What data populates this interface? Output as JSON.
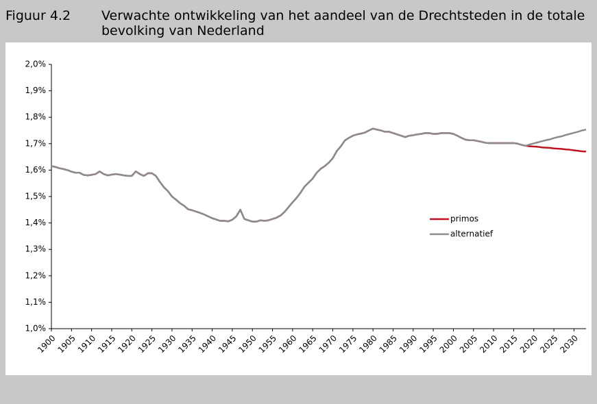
{
  "header": {
    "label": "Figuur 4.2",
    "title": "Verwachte ontwikkeling van het aandeel van de Drechtsteden in de totale bevolking van Nederland"
  },
  "chart_data": {
    "type": "line",
    "x": [
      1900,
      1901,
      1902,
      1903,
      1904,
      1905,
      1906,
      1907,
      1908,
      1909,
      1910,
      1911,
      1912,
      1913,
      1914,
      1915,
      1916,
      1917,
      1918,
      1919,
      1920,
      1921,
      1922,
      1923,
      1924,
      1925,
      1926,
      1927,
      1928,
      1929,
      1930,
      1931,
      1932,
      1933,
      1934,
      1935,
      1936,
      1937,
      1938,
      1939,
      1940,
      1941,
      1942,
      1943,
      1944,
      1945,
      1946,
      1947,
      1948,
      1949,
      1950,
      1951,
      1952,
      1953,
      1954,
      1955,
      1956,
      1957,
      1958,
      1959,
      1960,
      1961,
      1962,
      1963,
      1964,
      1965,
      1966,
      1967,
      1968,
      1969,
      1970,
      1971,
      1972,
      1973,
      1974,
      1975,
      1976,
      1977,
      1978,
      1979,
      1980,
      1981,
      1982,
      1983,
      1984,
      1985,
      1986,
      1987,
      1988,
      1989,
      1990,
      1991,
      1992,
      1993,
      1994,
      1995,
      1996,
      1997,
      1998,
      1999,
      2000,
      2001,
      2002,
      2003,
      2004,
      2005,
      2006,
      2007,
      2008,
      2009,
      2010,
      2011,
      2012,
      2013,
      2014,
      2015,
      2016,
      2017,
      2018,
      2019,
      2020,
      2021,
      2022,
      2023,
      2024,
      2025,
      2026,
      2027,
      2028,
      2029,
      2030,
      2031,
      2032,
      2033
    ],
    "series": [
      {
        "name": "primos",
        "color": "#c0121e",
        "values": [
          1.615,
          1.612,
          1.607,
          1.604,
          1.6,
          1.594,
          1.59,
          1.59,
          1.582,
          1.58,
          1.582,
          1.585,
          1.595,
          1.585,
          1.58,
          1.583,
          1.585,
          1.583,
          1.58,
          1.578,
          1.578,
          1.595,
          1.585,
          1.578,
          1.588,
          1.588,
          1.578,
          1.555,
          1.535,
          1.52,
          1.5,
          1.488,
          1.475,
          1.465,
          1.452,
          1.448,
          1.443,
          1.438,
          1.432,
          1.425,
          1.418,
          1.413,
          1.408,
          1.408,
          1.406,
          1.412,
          1.425,
          1.45,
          1.415,
          1.41,
          1.405,
          1.405,
          1.41,
          1.408,
          1.41,
          1.415,
          1.42,
          1.428,
          1.442,
          1.46,
          1.478,
          1.495,
          1.515,
          1.538,
          1.553,
          1.568,
          1.59,
          1.605,
          1.615,
          1.628,
          1.645,
          1.672,
          1.69,
          1.712,
          1.722,
          1.73,
          1.735,
          1.738,
          1.742,
          1.75,
          1.757,
          1.753,
          1.75,
          1.745,
          1.745,
          1.74,
          1.735,
          1.73,
          1.725,
          1.73,
          1.732,
          1.735,
          1.737,
          1.74,
          1.74,
          1.737,
          1.737,
          1.74,
          1.74,
          1.74,
          1.737,
          1.73,
          1.722,
          1.715,
          1.713,
          1.713,
          1.71,
          1.707,
          1.703,
          1.702,
          1.702,
          1.702,
          1.702,
          1.702,
          1.702,
          1.702,
          1.7,
          1.695,
          1.692,
          1.69,
          1.689,
          1.688,
          1.686,
          1.685,
          1.684,
          1.682,
          1.681,
          1.68,
          1.678,
          1.677,
          1.675,
          1.673,
          1.671,
          1.67
        ]
      },
      {
        "name": "alternatief",
        "color": "#8c8c8c",
        "values": [
          1.615,
          1.612,
          1.607,
          1.604,
          1.6,
          1.594,
          1.59,
          1.59,
          1.582,
          1.58,
          1.582,
          1.585,
          1.595,
          1.585,
          1.58,
          1.583,
          1.585,
          1.583,
          1.58,
          1.578,
          1.578,
          1.595,
          1.585,
          1.578,
          1.588,
          1.588,
          1.578,
          1.555,
          1.535,
          1.52,
          1.5,
          1.488,
          1.475,
          1.465,
          1.452,
          1.448,
          1.443,
          1.438,
          1.432,
          1.425,
          1.418,
          1.413,
          1.408,
          1.408,
          1.406,
          1.412,
          1.425,
          1.45,
          1.415,
          1.41,
          1.405,
          1.405,
          1.41,
          1.408,
          1.41,
          1.415,
          1.42,
          1.428,
          1.442,
          1.46,
          1.478,
          1.495,
          1.515,
          1.538,
          1.553,
          1.568,
          1.59,
          1.605,
          1.615,
          1.628,
          1.645,
          1.672,
          1.69,
          1.712,
          1.722,
          1.73,
          1.735,
          1.738,
          1.742,
          1.75,
          1.757,
          1.753,
          1.75,
          1.745,
          1.745,
          1.74,
          1.735,
          1.73,
          1.725,
          1.73,
          1.732,
          1.735,
          1.737,
          1.74,
          1.74,
          1.737,
          1.737,
          1.74,
          1.74,
          1.74,
          1.737,
          1.73,
          1.722,
          1.715,
          1.713,
          1.713,
          1.71,
          1.707,
          1.703,
          1.702,
          1.702,
          1.702,
          1.702,
          1.702,
          1.702,
          1.702,
          1.7,
          1.695,
          1.692,
          1.697,
          1.701,
          1.705,
          1.709,
          1.713,
          1.716,
          1.721,
          1.725,
          1.728,
          1.733,
          1.737,
          1.741,
          1.745,
          1.75,
          1.753
        ]
      }
    ],
    "xlim": [
      1900,
      2033
    ],
    "xticks": [
      1900,
      1905,
      1910,
      1915,
      1920,
      1925,
      1930,
      1935,
      1940,
      1945,
      1950,
      1955,
      1960,
      1965,
      1970,
      1975,
      1980,
      1985,
      1990,
      1995,
      2000,
      2005,
      2010,
      2015,
      2020,
      2025,
      2030
    ],
    "ylim": [
      1.0,
      2.0
    ],
    "yticks": [
      {
        "value": 1.0,
        "label": "1,0%"
      },
      {
        "value": 1.1,
        "label": "1,1%"
      },
      {
        "value": 1.2,
        "label": "1,2%"
      },
      {
        "value": 1.3,
        "label": "1,3%"
      },
      {
        "value": 1.4,
        "label": "1,4%"
      },
      {
        "value": 1.5,
        "label": "1,5%"
      },
      {
        "value": 1.6,
        "label": "1,6%"
      },
      {
        "value": 1.7,
        "label": "1,7%"
      },
      {
        "value": 1.8,
        "label": "1,8%"
      },
      {
        "value": 1.9,
        "label": "1,9%"
      },
      {
        "value": 2.0,
        "label": "2,0%"
      }
    ],
    "grid": false,
    "legend": "right"
  }
}
